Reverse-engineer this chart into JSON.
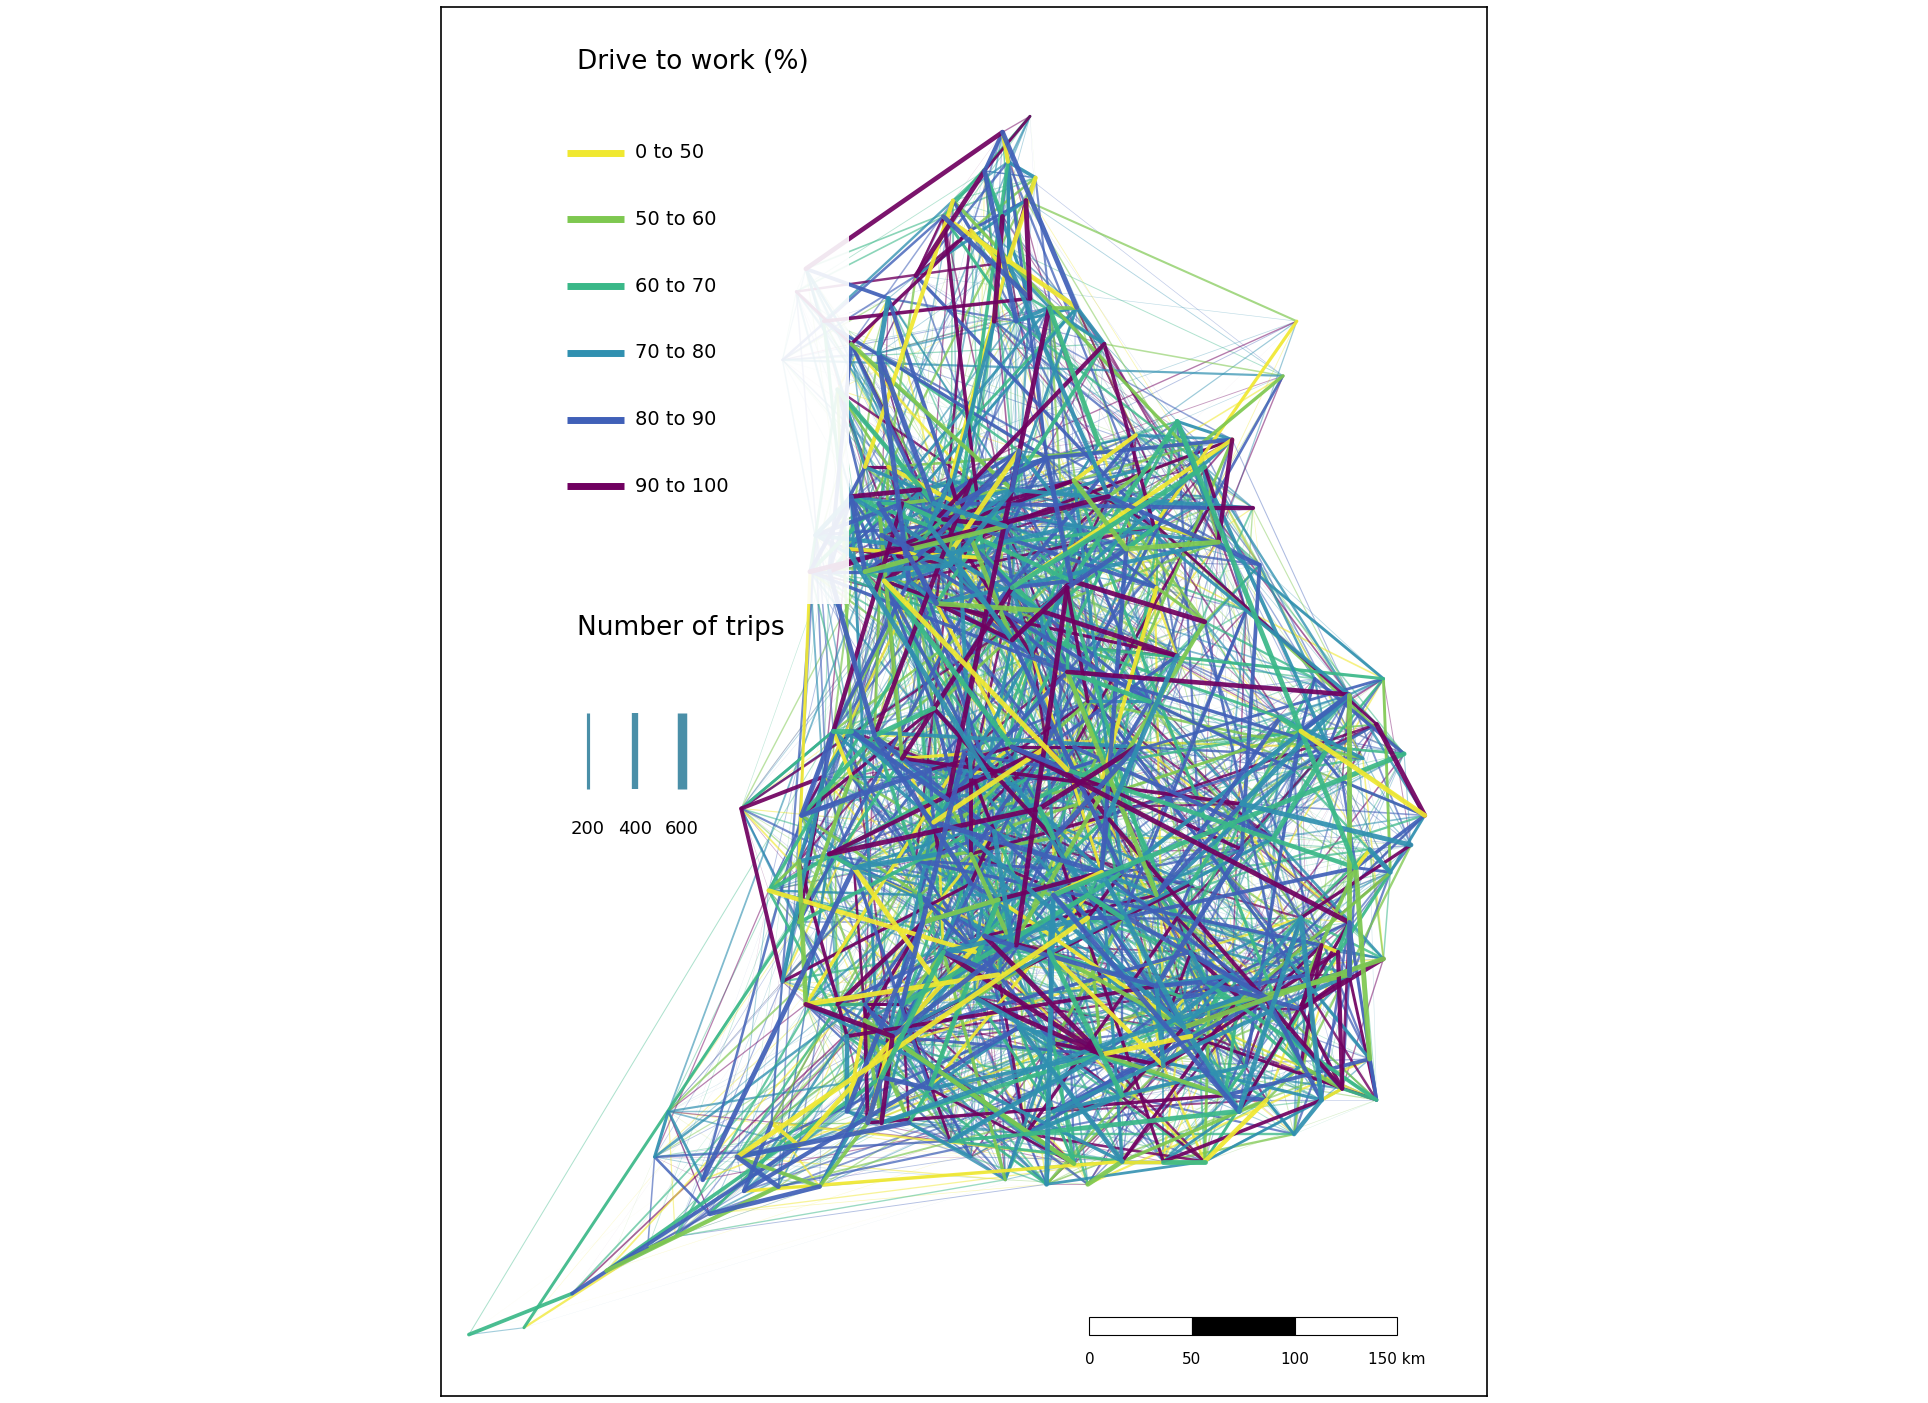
{
  "legend_title_color": "Drive to work (%)",
  "legend_size_title": "Number of trips",
  "color_labels": [
    "0 to 50",
    "50 to 60",
    "60 to 70",
    "70 to 80",
    "80 to 90",
    "90 to 100"
  ],
  "colors": [
    "#f0e830",
    "#7ec850",
    "#3ab888",
    "#3090b0",
    "#4060b8",
    "#700060"
  ],
  "size_legend_values": [
    200,
    400,
    600
  ],
  "size_legend_color": "#4a8fa8",
  "background_color": "#ffffff",
  "border_color": "#000000",
  "scalebar_labels": [
    "0",
    "50",
    "100",
    "150 km"
  ],
  "fig_width": 19.28,
  "fig_height": 14.03,
  "lon_min": -5.7,
  "lon_max": 1.9,
  "lat_min": 49.8,
  "lat_max": 55.9
}
